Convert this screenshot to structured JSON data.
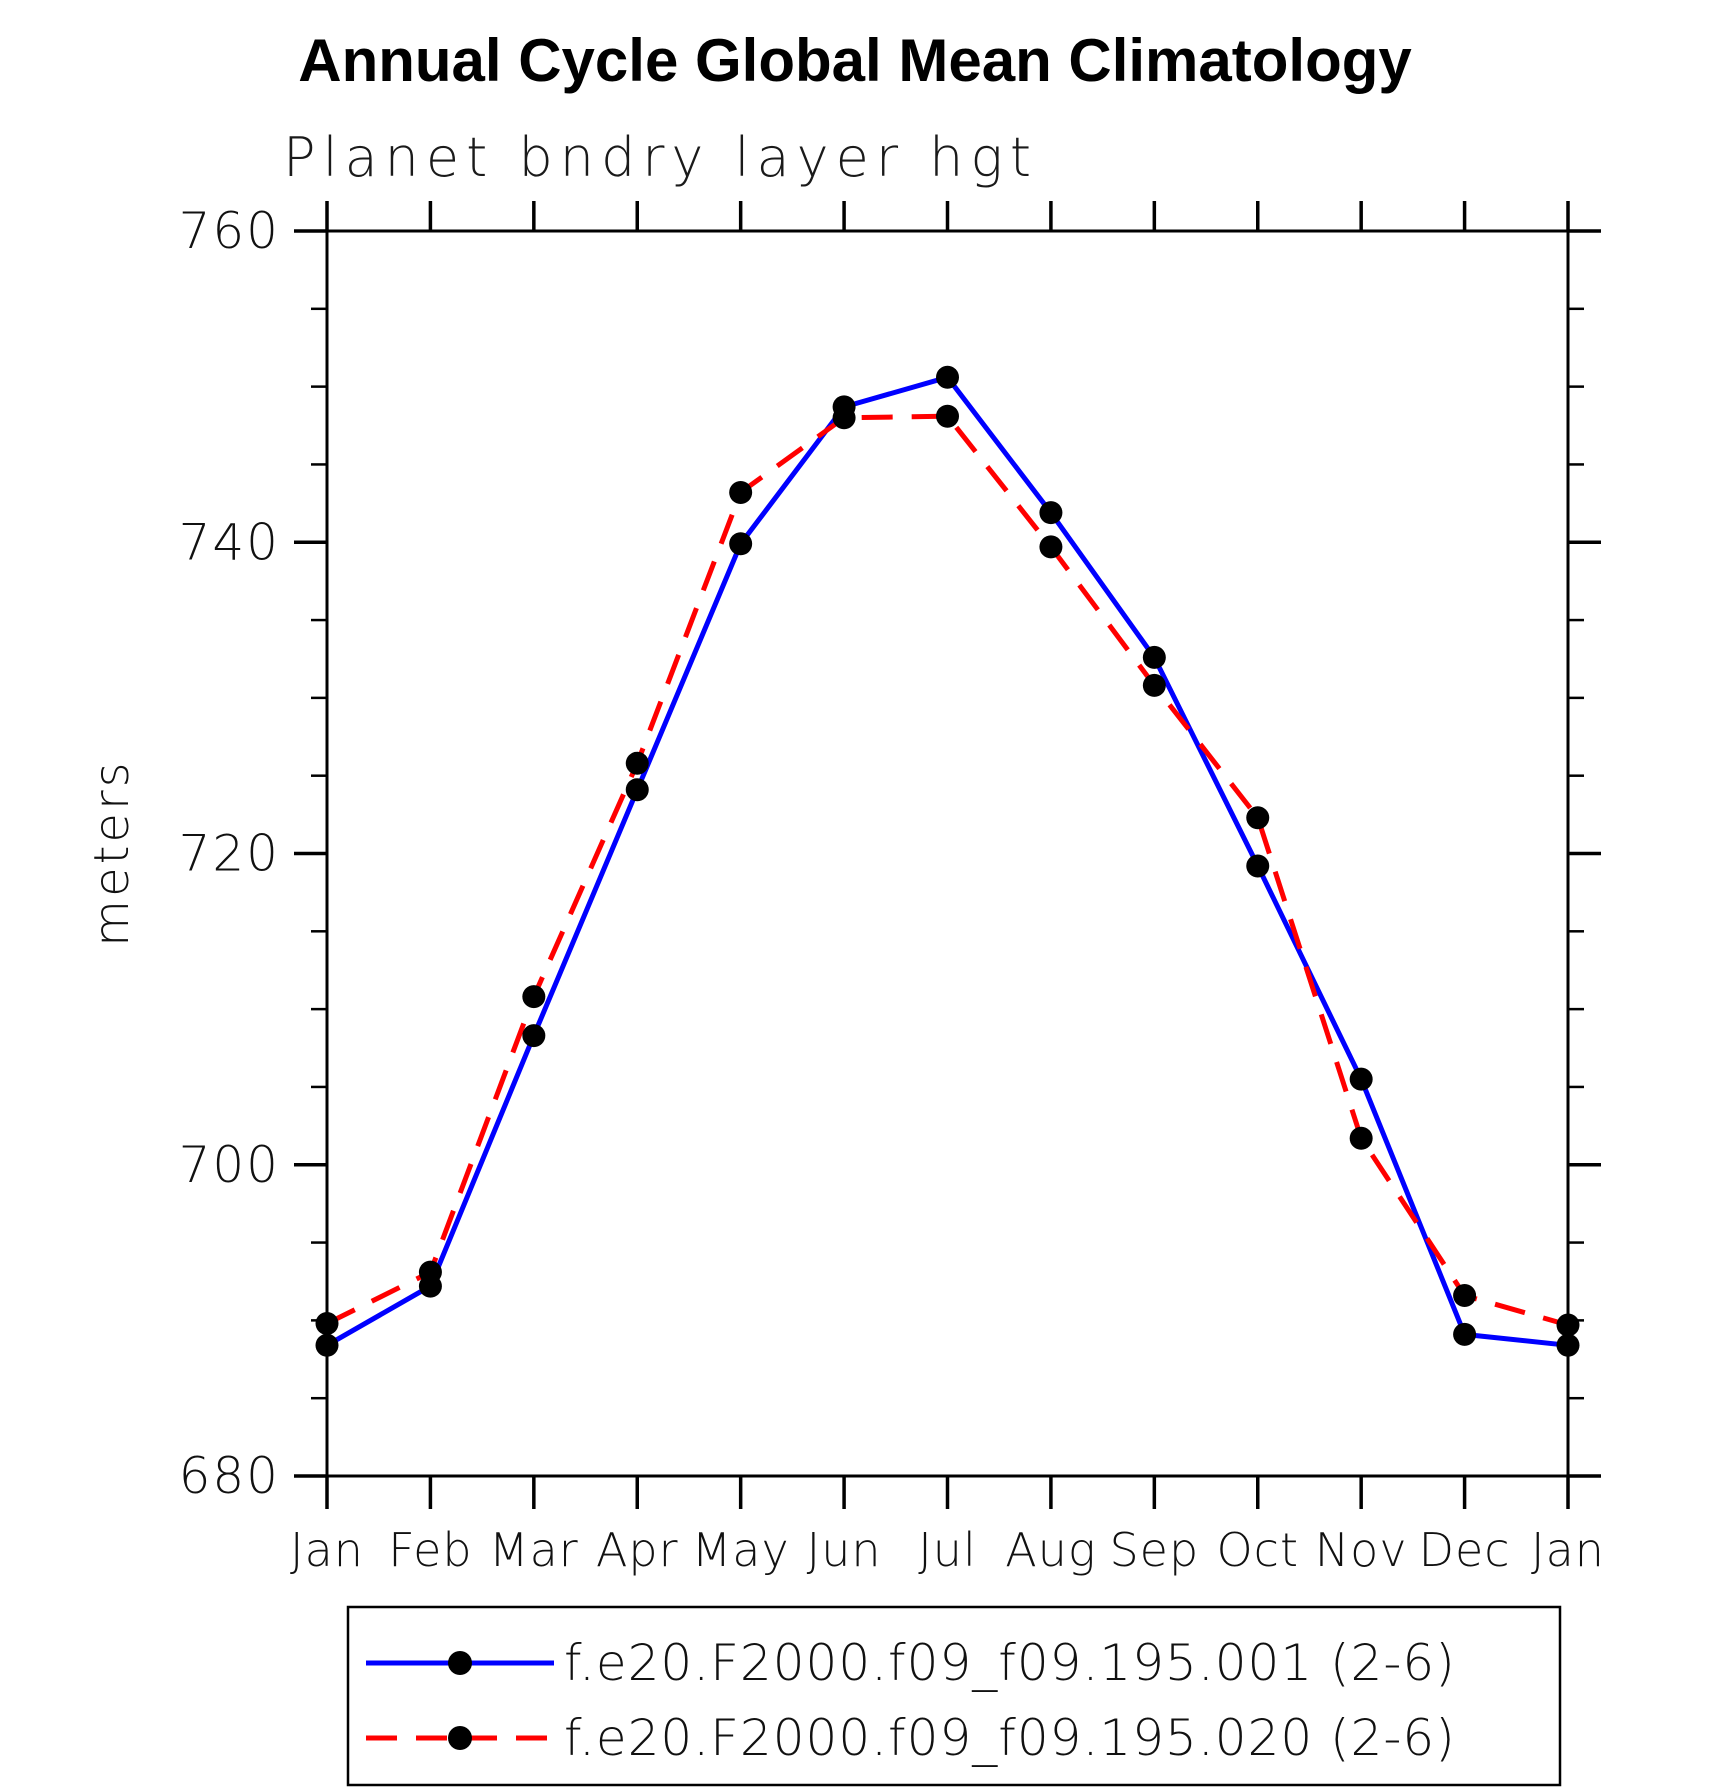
{
  "chart_data": {
    "type": "line",
    "title": "Annual Cycle Global Mean Climatology",
    "subtitle": "Planet bndry layer hgt",
    "ylabel": "meters",
    "categories": [
      "Jan",
      "Feb",
      "Mar",
      "Apr",
      "May",
      "Jun",
      "Jul",
      "Aug",
      "Sep",
      "Oct",
      "Nov",
      "Dec",
      "Jan"
    ],
    "ylim": [
      680,
      760
    ],
    "yticks_major": [
      680,
      700,
      720,
      740,
      760
    ],
    "ytick_minor_step": 5,
    "grid": false,
    "legend_position": "bottom",
    "series": [
      {
        "name": "f.e20.F2000.f09_f09.195.001 (2-6)",
        "color": "#0000ff",
        "line_style": "solid",
        "marker": "circle",
        "marker_color": "#000000",
        "values": [
          688.4,
          692.2,
          708.3,
          724.1,
          739.9,
          748.7,
          750.6,
          741.9,
          732.6,
          719.2,
          705.5,
          689.1,
          688.4
        ]
      },
      {
        "name": "f.e20.F2000.f09_f09.195.020 (2-6)",
        "color": "#ff0000",
        "line_style": "dashed",
        "marker": "circle",
        "marker_color": "#000000",
        "values": [
          689.8,
          693.1,
          710.8,
          725.8,
          743.2,
          748.0,
          748.1,
          739.7,
          730.8,
          722.3,
          701.7,
          691.6,
          689.7
        ]
      }
    ]
  }
}
